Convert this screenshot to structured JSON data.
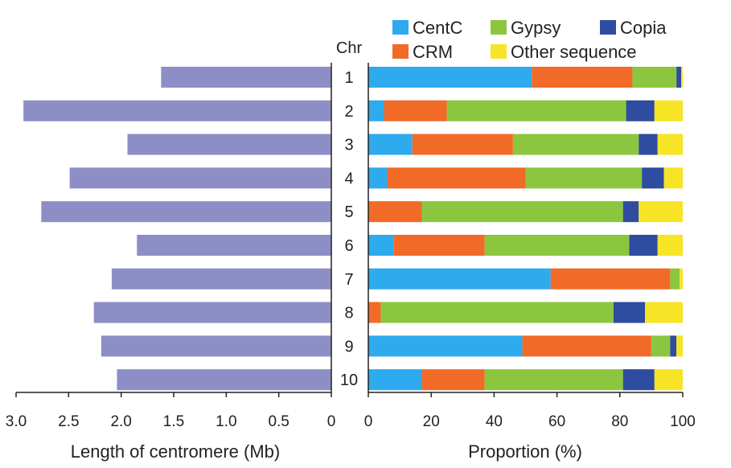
{
  "chart_data": [
    {
      "type": "bar",
      "orientation": "horizontal",
      "direction": "right-to-left",
      "title": "",
      "xlabel": "Length of centromere (Mb)",
      "ylabel": "Chr",
      "categories": [
        "1",
        "2",
        "3",
        "4",
        "5",
        "6",
        "7",
        "8",
        "9",
        "10"
      ],
      "values": [
        1.62,
        2.93,
        1.94,
        2.49,
        2.76,
        1.85,
        2.09,
        2.26,
        2.19,
        2.04
      ],
      "xlim": [
        0,
        3.0
      ],
      "ticks": [
        "3.0",
        "2.5",
        "2.0",
        "1.5",
        "1.0",
        "0.5",
        "0"
      ],
      "color": "#8e8ec6"
    },
    {
      "type": "bar",
      "orientation": "horizontal",
      "stacked": true,
      "title": "",
      "xlabel": "Proportion (%)",
      "categories": [
        "1",
        "2",
        "3",
        "4",
        "5",
        "6",
        "7",
        "8",
        "9",
        "10"
      ],
      "xlim": [
        0,
        100
      ],
      "ticks": [
        "0",
        "20",
        "40",
        "60",
        "80",
        "100"
      ],
      "legend_position": "top",
      "series": [
        {
          "name": "CentC",
          "color": "#2eaaee",
          "values": [
            52,
            5,
            14,
            6,
            0,
            8,
            58,
            0,
            49,
            17
          ]
        },
        {
          "name": "CRM",
          "color": "#f26a28",
          "values": [
            32,
            20,
            32,
            44,
            17,
            29,
            38,
            4,
            41,
            20
          ]
        },
        {
          "name": "Gypsy",
          "color": "#8cc63f",
          "values": [
            14,
            57,
            40,
            37,
            64,
            46,
            3,
            74,
            6,
            44
          ]
        },
        {
          "name": "Copia",
          "color": "#2e4ca0",
          "values": [
            1.5,
            9,
            6,
            7,
            5,
            9,
            0,
            10,
            2,
            10
          ]
        },
        {
          "name": "Other sequence",
          "color": "#f7e426",
          "values": [
            0.5,
            9,
            8,
            6,
            14,
            8,
            1,
            12,
            2,
            9
          ]
        }
      ]
    }
  ]
}
